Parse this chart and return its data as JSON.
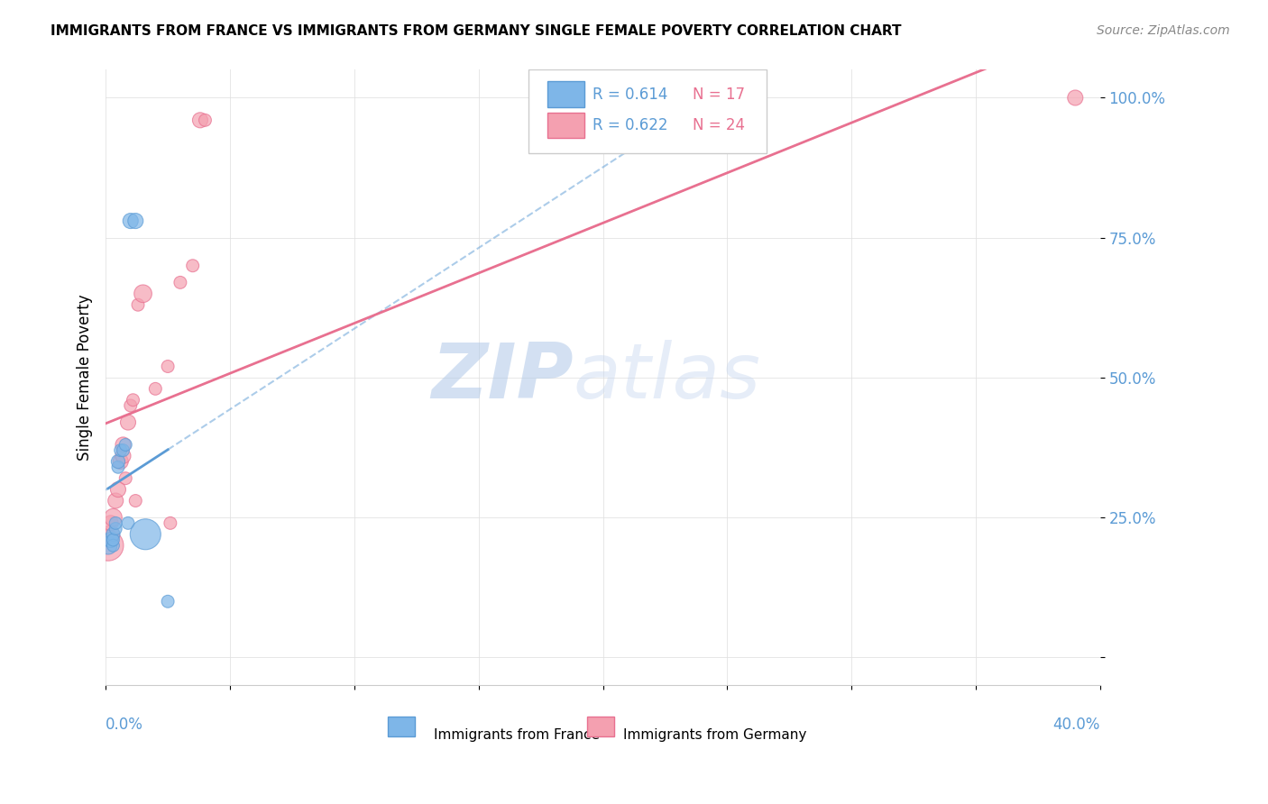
{
  "title": "IMMIGRANTS FROM FRANCE VS IMMIGRANTS FROM GERMANY SINGLE FEMALE POVERTY CORRELATION CHART",
  "source": "Source: ZipAtlas.com",
  "ylabel": "Single Female Poverty",
  "yticks": [
    0.0,
    0.25,
    0.5,
    0.75,
    1.0
  ],
  "ytick_labels": [
    "",
    "25.0%",
    "50.0%",
    "75.0%",
    "100.0%"
  ],
  "color_france": "#7EB6E8",
  "color_germany": "#F4A0B0",
  "color_france_line": "#5B9BD5",
  "color_germany_line": "#E87090",
  "watermark_zip": "ZIP",
  "watermark_atlas": "atlas",
  "france_x": [
    0.001,
    0.002,
    0.003,
    0.003,
    0.003,
    0.004,
    0.004,
    0.005,
    0.005,
    0.006,
    0.007,
    0.008,
    0.009,
    0.01,
    0.012,
    0.016,
    0.025
  ],
  "france_y": [
    0.2,
    0.21,
    0.22,
    0.2,
    0.21,
    0.23,
    0.24,
    0.34,
    0.35,
    0.37,
    0.37,
    0.38,
    0.24,
    0.78,
    0.78,
    0.22,
    0.1
  ],
  "germany_x": [
    0.001,
    0.002,
    0.002,
    0.003,
    0.004,
    0.005,
    0.006,
    0.007,
    0.007,
    0.008,
    0.009,
    0.01,
    0.011,
    0.012,
    0.013,
    0.015,
    0.02,
    0.025,
    0.026,
    0.03,
    0.035,
    0.038,
    0.04,
    0.39
  ],
  "germany_y": [
    0.2,
    0.22,
    0.24,
    0.25,
    0.28,
    0.3,
    0.35,
    0.36,
    0.38,
    0.32,
    0.42,
    0.45,
    0.46,
    0.28,
    0.63,
    0.65,
    0.48,
    0.52,
    0.24,
    0.67,
    0.7,
    0.96,
    0.96,
    1.0
  ],
  "france_sizes": [
    200,
    150,
    120,
    100,
    100,
    100,
    100,
    100,
    120,
    100,
    100,
    100,
    100,
    150,
    150,
    600,
    100
  ],
  "germany_sizes": [
    600,
    200,
    150,
    200,
    150,
    150,
    150,
    150,
    150,
    100,
    150,
    100,
    100,
    100,
    100,
    200,
    100,
    100,
    100,
    100,
    100,
    150,
    100,
    150
  ],
  "xlim": [
    0.0,
    0.4
  ],
  "ylim": [
    -0.05,
    1.05
  ]
}
